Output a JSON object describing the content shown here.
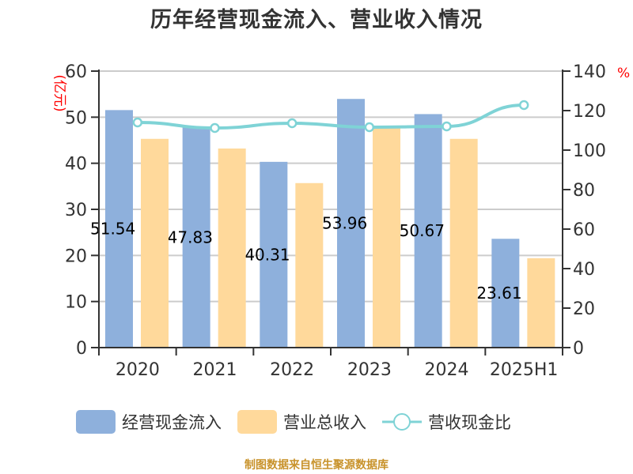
{
  "title": "历年经营现金流入、营业收入情况",
  "source_note": "制图数据来自恒生聚源数据库",
  "colors": {
    "cash_inflow": "#8eb0dc",
    "revenue": "#ffd99b",
    "ratio_line": "#7fd3d6",
    "axis": "#333333",
    "grid": "#cccccc",
    "unit_label": "#ff0000",
    "title": "#333333",
    "source": "#c8922a"
  },
  "legend": [
    {
      "label": "经营现金流入",
      "type": "bar"
    },
    {
      "label": "营业总收入",
      "type": "bar"
    },
    {
      "label": "营收现金比",
      "type": "line"
    }
  ],
  "chart_data": {
    "type": "bar",
    "title": "历年经营现金流入、营业收入情况",
    "categories": [
      "2020",
      "2021",
      "2022",
      "2023",
      "2024",
      "2025H1"
    ],
    "series": [
      {
        "name": "经营现金流入",
        "type": "bar",
        "axis": "left",
        "values": [
          51.54,
          47.83,
          40.31,
          53.96,
          50.67,
          23.61
        ],
        "data_labels": [
          "51.54",
          "47.83",
          "40.31",
          "53.96",
          "50.67",
          "23.61"
        ]
      },
      {
        "name": "营业总收入",
        "type": "bar",
        "axis": "left",
        "values": [
          45.3,
          43.2,
          35.7,
          48.0,
          45.3,
          19.4
        ]
      },
      {
        "name": "营收现金比",
        "type": "line",
        "axis": "right",
        "values": [
          114.0,
          111.2,
          113.6,
          111.6,
          112.0,
          122.8
        ]
      }
    ],
    "xlabel": "",
    "ylabel": "亿元",
    "y2label": "%",
    "ylim": [
      0,
      60
    ],
    "y2lim": [
      0,
      140
    ],
    "yticks": [
      0,
      10,
      20,
      30,
      40,
      50,
      60
    ],
    "y2ticks": [
      0,
      20,
      40,
      60,
      80,
      100,
      120,
      140
    ],
    "grid": true,
    "legend_position": "bottom"
  }
}
